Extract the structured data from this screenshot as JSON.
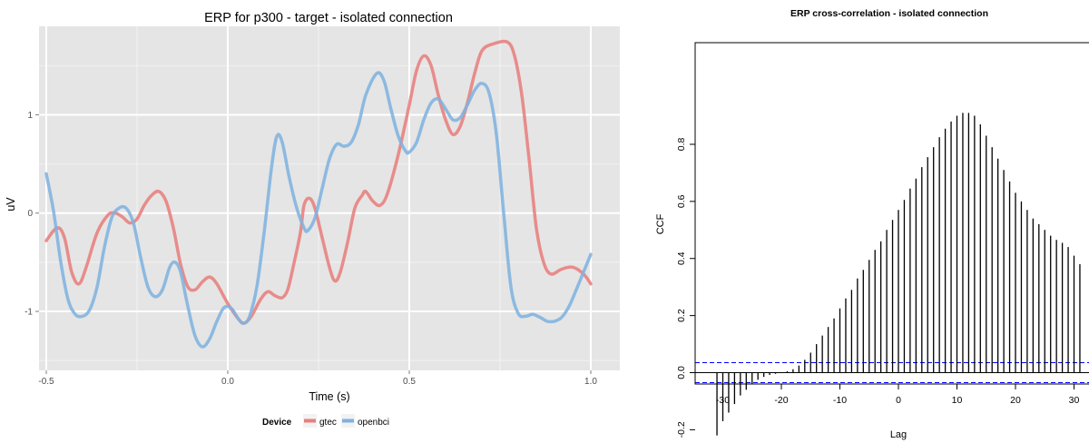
{
  "chart_data": [
    {
      "type": "line",
      "title": "ERP for p300 - target - isolated connection",
      "xlabel": "Time (s)",
      "ylabel": "uV",
      "xlim": [
        -0.52,
        1.08
      ],
      "ylim": [
        -1.6,
        1.9
      ],
      "x_ticks": [
        -0.5,
        0.0,
        0.5,
        1.0
      ],
      "x_tick_labels": [
        "-0.5",
        "0.0",
        "0.5",
        "1.0"
      ],
      "y_ticks": [
        -1,
        0,
        1
      ],
      "y_tick_labels": [
        "-1",
        "0",
        "1"
      ],
      "grid": true,
      "legend": {
        "title": "Device",
        "placement": "bottom"
      },
      "series": [
        {
          "name": "gtec",
          "color": "#E7807D",
          "points": [
            [
              -0.5,
              -0.28
            ],
            [
              -0.47,
              -0.15
            ],
            [
              -0.45,
              -0.25
            ],
            [
              -0.43,
              -0.6
            ],
            [
              -0.41,
              -0.72
            ],
            [
              -0.39,
              -0.55
            ],
            [
              -0.36,
              -0.2
            ],
            [
              -0.33,
              -0.02
            ],
            [
              -0.31,
              0.0
            ],
            [
              -0.29,
              -0.04
            ],
            [
              -0.27,
              -0.1
            ],
            [
              -0.25,
              -0.06
            ],
            [
              -0.23,
              0.08
            ],
            [
              -0.21,
              0.18
            ],
            [
              -0.19,
              0.22
            ],
            [
              -0.17,
              0.12
            ],
            [
              -0.15,
              -0.15
            ],
            [
              -0.13,
              -0.52
            ],
            [
              -0.11,
              -0.75
            ],
            [
              -0.09,
              -0.78
            ],
            [
              -0.07,
              -0.7
            ],
            [
              -0.05,
              -0.65
            ],
            [
              -0.03,
              -0.72
            ],
            [
              0.0,
              -0.92
            ],
            [
              0.03,
              -1.08
            ],
            [
              0.045,
              -1.12
            ],
            [
              0.065,
              -1.05
            ],
            [
              0.09,
              -0.88
            ],
            [
              0.11,
              -0.8
            ],
            [
              0.13,
              -0.84
            ],
            [
              0.15,
              -0.86
            ],
            [
              0.165,
              -0.78
            ],
            [
              0.18,
              -0.55
            ],
            [
              0.2,
              -0.2
            ],
            [
              0.21,
              0.08
            ],
            [
              0.225,
              0.15
            ],
            [
              0.24,
              0.05
            ],
            [
              0.26,
              -0.25
            ],
            [
              0.28,
              -0.55
            ],
            [
              0.295,
              -0.69
            ],
            [
              0.31,
              -0.6
            ],
            [
              0.33,
              -0.3
            ],
            [
              0.35,
              0.05
            ],
            [
              0.37,
              0.18
            ],
            [
              0.38,
              0.22
            ],
            [
              0.4,
              0.12
            ],
            [
              0.42,
              0.08
            ],
            [
              0.44,
              0.2
            ],
            [
              0.47,
              0.6
            ],
            [
              0.5,
              1.1
            ],
            [
              0.52,
              1.45
            ],
            [
              0.54,
              1.6
            ],
            [
              0.56,
              1.5
            ],
            [
              0.58,
              1.2
            ],
            [
              0.6,
              0.95
            ],
            [
              0.62,
              0.8
            ],
            [
              0.64,
              0.88
            ],
            [
              0.66,
              1.12
            ],
            [
              0.68,
              1.42
            ],
            [
              0.7,
              1.65
            ],
            [
              0.73,
              1.72
            ],
            [
              0.77,
              1.74
            ],
            [
              0.79,
              1.6
            ],
            [
              0.81,
              1.2
            ],
            [
              0.83,
              0.55
            ],
            [
              0.85,
              -0.15
            ],
            [
              0.87,
              -0.5
            ],
            [
              0.89,
              -0.62
            ],
            [
              0.92,
              -0.57
            ],
            [
              0.95,
              -0.55
            ],
            [
              0.98,
              -0.62
            ],
            [
              1.0,
              -0.72
            ]
          ]
        },
        {
          "name": "openbci",
          "color": "#7FB3DF",
          "points": [
            [
              -0.5,
              0.4
            ],
            [
              -0.48,
              0.02
            ],
            [
              -0.46,
              -0.5
            ],
            [
              -0.44,
              -0.88
            ],
            [
              -0.42,
              -1.03
            ],
            [
              -0.4,
              -1.05
            ],
            [
              -0.38,
              -0.98
            ],
            [
              -0.36,
              -0.75
            ],
            [
              -0.34,
              -0.35
            ],
            [
              -0.32,
              -0.05
            ],
            [
              -0.3,
              0.05
            ],
            [
              -0.28,
              0.05
            ],
            [
              -0.26,
              -0.1
            ],
            [
              -0.24,
              -0.45
            ],
            [
              -0.22,
              -0.75
            ],
            [
              -0.2,
              -0.85
            ],
            [
              -0.18,
              -0.78
            ],
            [
              -0.16,
              -0.55
            ],
            [
              -0.145,
              -0.5
            ],
            [
              -0.13,
              -0.6
            ],
            [
              -0.11,
              -0.95
            ],
            [
              -0.09,
              -1.25
            ],
            [
              -0.07,
              -1.36
            ],
            [
              -0.05,
              -1.28
            ],
            [
              -0.03,
              -1.1
            ],
            [
              -0.01,
              -0.96
            ],
            [
              0.01,
              -0.97
            ],
            [
              0.03,
              -1.08
            ],
            [
              0.045,
              -1.12
            ],
            [
              0.06,
              -1.05
            ],
            [
              0.08,
              -0.75
            ],
            [
              0.1,
              -0.2
            ],
            [
              0.12,
              0.45
            ],
            [
              0.135,
              0.78
            ],
            [
              0.15,
              0.72
            ],
            [
              0.17,
              0.35
            ],
            [
              0.19,
              0.05
            ],
            [
              0.21,
              -0.15
            ],
            [
              0.22,
              -0.18
            ],
            [
              0.24,
              -0.05
            ],
            [
              0.26,
              0.25
            ],
            [
              0.28,
              0.55
            ],
            [
              0.3,
              0.7
            ],
            [
              0.32,
              0.68
            ],
            [
              0.34,
              0.72
            ],
            [
              0.36,
              0.9
            ],
            [
              0.38,
              1.2
            ],
            [
              0.41,
              1.42
            ],
            [
              0.43,
              1.35
            ],
            [
              0.45,
              1.05
            ],
            [
              0.47,
              0.78
            ],
            [
              0.49,
              0.63
            ],
            [
              0.5,
              0.62
            ],
            [
              0.52,
              0.72
            ],
            [
              0.54,
              0.95
            ],
            [
              0.56,
              1.12
            ],
            [
              0.58,
              1.16
            ],
            [
              0.6,
              1.06
            ],
            [
              0.62,
              0.95
            ],
            [
              0.64,
              0.97
            ],
            [
              0.66,
              1.1
            ],
            [
              0.68,
              1.25
            ],
            [
              0.7,
              1.32
            ],
            [
              0.72,
              1.22
            ],
            [
              0.74,
              0.8
            ],
            [
              0.76,
              0.0
            ],
            [
              0.78,
              -0.75
            ],
            [
              0.8,
              -1.02
            ],
            [
              0.82,
              -1.05
            ],
            [
              0.84,
              -1.03
            ],
            [
              0.86,
              -1.06
            ],
            [
              0.88,
              -1.1
            ],
            [
              0.9,
              -1.1
            ],
            [
              0.92,
              -1.06
            ],
            [
              0.94,
              -0.95
            ],
            [
              0.96,
              -0.78
            ],
            [
              0.98,
              -0.6
            ],
            [
              1.0,
              -0.42
            ]
          ]
        }
      ]
    },
    {
      "type": "bar",
      "title": "ERP cross-correlation - isolated connection",
      "xlabel": "Lag",
      "ylabel": "CCF",
      "xlim": [
        -33,
        33
      ],
      "ylim": [
        -0.25,
        0.95
      ],
      "x_ticks": [
        -30,
        -20,
        -10,
        0,
        10,
        20,
        30
      ],
      "x_tick_labels": [
        "-30",
        "-20",
        "-10",
        "0",
        "10",
        "20",
        "30"
      ],
      "y_ticks": [
        -0.2,
        0.0,
        0.2,
        0.4,
        0.6,
        0.8
      ],
      "y_tick_labels": [
        "-0.2",
        "0.0",
        "0.2",
        "0.4",
        "0.6",
        "0.8"
      ],
      "confidence_band": 0.035,
      "band_color": "#0000FF",
      "lags": [
        -31,
        -30,
        -29,
        -28,
        -27,
        -26,
        -25,
        -24,
        -23,
        -22,
        -21,
        -20,
        -19,
        -18,
        -17,
        -16,
        -15,
        -14,
        -13,
        -12,
        -11,
        -10,
        -9,
        -8,
        -7,
        -6,
        -5,
        -4,
        -3,
        -2,
        -1,
        0,
        1,
        2,
        3,
        4,
        5,
        6,
        7,
        8,
        9,
        10,
        11,
        12,
        13,
        14,
        15,
        16,
        17,
        18,
        19,
        20,
        21,
        22,
        23,
        24,
        25,
        26,
        27,
        28,
        29,
        30,
        31
      ],
      "values": [
        -0.22,
        -0.17,
        -0.14,
        -0.11,
        -0.08,
        -0.06,
        -0.04,
        -0.025,
        -0.015,
        -0.008,
        -0.004,
        0.0,
        0.005,
        0.012,
        0.025,
        0.045,
        0.07,
        0.1,
        0.13,
        0.16,
        0.19,
        0.225,
        0.26,
        0.29,
        0.33,
        0.36,
        0.395,
        0.43,
        0.46,
        0.5,
        0.535,
        0.57,
        0.605,
        0.645,
        0.68,
        0.72,
        0.755,
        0.79,
        0.825,
        0.855,
        0.88,
        0.9,
        0.91,
        0.91,
        0.9,
        0.87,
        0.83,
        0.79,
        0.75,
        0.71,
        0.67,
        0.63,
        0.6,
        0.57,
        0.54,
        0.52,
        0.5,
        0.48,
        0.465,
        0.455,
        0.44,
        0.41,
        0.38
      ]
    }
  ]
}
